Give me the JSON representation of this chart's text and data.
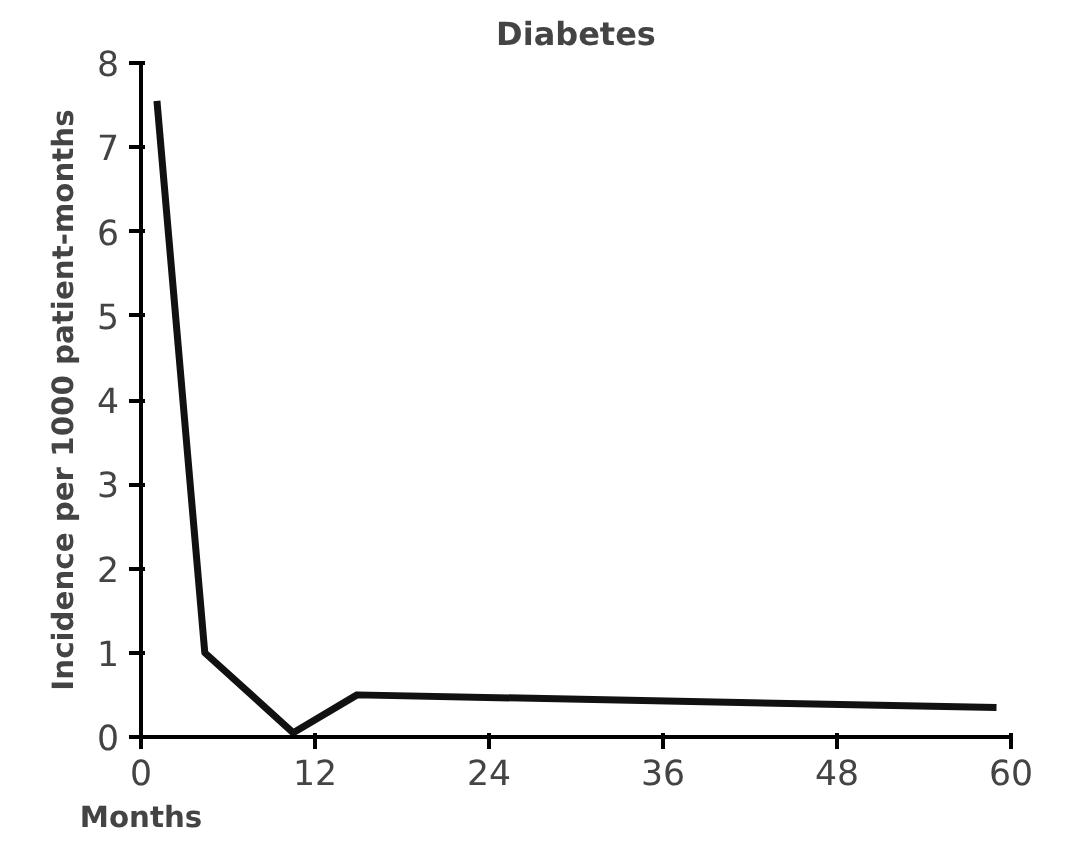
{
  "chart_data": {
    "type": "line",
    "title": "Diabetes",
    "xlabel": "Months",
    "ylabel": "Incidence per 1000 patient-months",
    "x": [
      1.1,
      4.4,
      10.5,
      14.9,
      59
    ],
    "series": [
      {
        "color": "#111111",
        "values": [
          7.55,
          1.0,
          0.05,
          0.5,
          0.35
        ]
      }
    ],
    "xlim": [
      0,
      60
    ],
    "xticks": [
      0,
      12,
      24,
      36,
      48,
      60
    ],
    "ylim": [
      0,
      8
    ],
    "yticks": [
      0,
      1,
      2,
      3,
      4,
      5,
      6,
      7,
      8
    ],
    "grid": false,
    "marker": "none",
    "line_style": "solid"
  }
}
